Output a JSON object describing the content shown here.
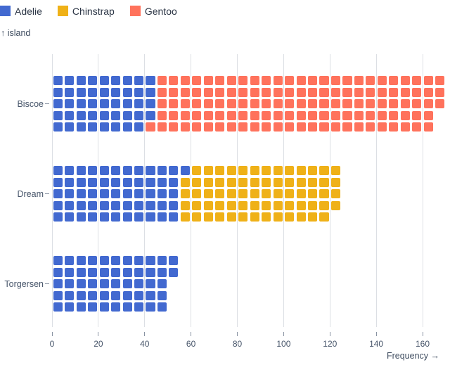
{
  "legend": {
    "items": [
      {
        "label": "Adelie",
        "color": "#4269d0"
      },
      {
        "label": "Chinstrap",
        "color": "#efb118"
      },
      {
        "label": "Gentoo",
        "color": "#ff725c"
      }
    ]
  },
  "axes": {
    "y_title": "↑ island",
    "x_title": "Frequency →"
  },
  "colors": {
    "adelie": "#4269d0",
    "chinstrap": "#efb118",
    "gentoo": "#ff725c",
    "grid": "#dcdfe4",
    "tick_text": "#47556a",
    "legend_text": "#2b3545"
  },
  "chart_data": {
    "type": "bar",
    "subtype": "waffle-horizontal",
    "title": "",
    "xlabel": "Frequency →",
    "ylabel": "↑ island",
    "categories": [
      "Biscoe",
      "Dream",
      "Torgersen"
    ],
    "series": [
      {
        "name": "Adelie",
        "color": "#4269d0",
        "values": [
          44,
          56,
          52
        ]
      },
      {
        "name": "Chinstrap",
        "color": "#efb118",
        "values": [
          0,
          68,
          0
        ]
      },
      {
        "name": "Gentoo",
        "color": "#ff725c",
        "values": [
          124,
          0,
          0
        ]
      }
    ],
    "totals": [
      168,
      124,
      52
    ],
    "unit_per_cell": 1,
    "rows_per_band": 5,
    "fill_order": "column-major-left-to-right-top-to-bottom",
    "x_ticks": [
      0,
      20,
      40,
      60,
      80,
      100,
      120,
      140,
      160
    ],
    "xlim": [
      0,
      170
    ],
    "grid": true,
    "legend_position": "top-left"
  }
}
